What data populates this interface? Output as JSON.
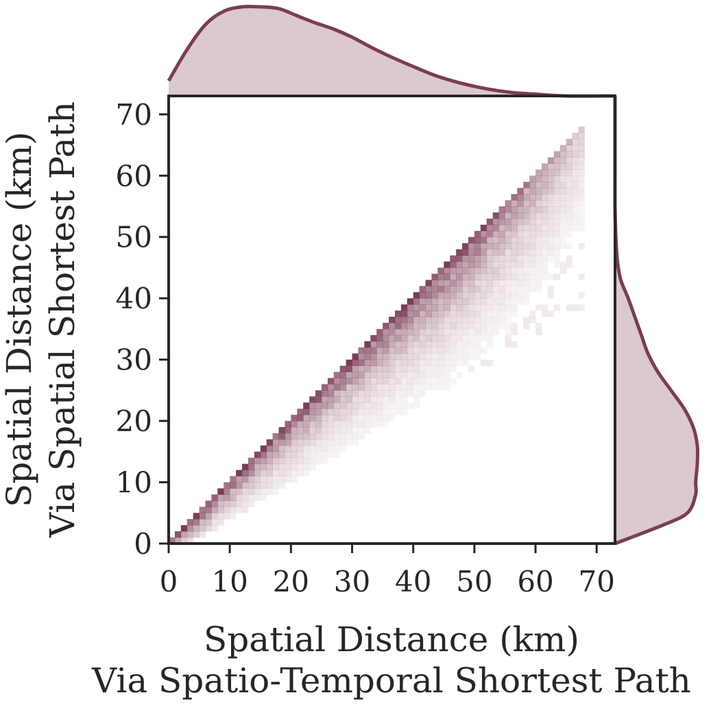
{
  "colors": {
    "line": "#7a3d56",
    "fill": "#dcc8cf",
    "heat_max": "#7a3d56",
    "axis": "#262626"
  },
  "chart_data": {
    "type": "heatmap",
    "subtype": "joint 2D histogram with marginal KDE curves",
    "title": "",
    "xlabel_lines": [
      "Spatial Distance (km)",
      "Via Spatio-Temporal Shortest Path"
    ],
    "ylabel_lines": [
      "Spatial Distance (km)",
      "Via Spatial Shortest Path"
    ],
    "xlim": [
      0,
      73
    ],
    "ylim": [
      0,
      73
    ],
    "xticks": [
      0,
      10,
      20,
      30,
      40,
      50,
      60,
      70
    ],
    "yticks": [
      0,
      10,
      20,
      30,
      40,
      50,
      60,
      70
    ],
    "grid": false,
    "legend": "none",
    "bin_width_km": 1,
    "heatmap": {
      "description": "Counts concentrated along the diagonal y = x (strongest just below it); density fades as y falls further below x and as distance grows beyond ~50 km.",
      "diagonal_end_km": 68,
      "min_ratio_y_over_x": 0.6
    },
    "marginal_x_kde": {
      "x": [
        0,
        3,
        6,
        9,
        12,
        15,
        18,
        21,
        24,
        27,
        30,
        33,
        36,
        40,
        44,
        48,
        52,
        56,
        60,
        65,
        73
      ],
      "density": [
        0.17,
        0.52,
        0.8,
        0.95,
        1.0,
        1.0,
        0.98,
        0.9,
        0.82,
        0.75,
        0.66,
        0.55,
        0.45,
        0.33,
        0.22,
        0.14,
        0.08,
        0.04,
        0.02,
        0.0,
        0.0
      ]
    },
    "marginal_y_kde": {
      "y": [
        0,
        3,
        5,
        8,
        10,
        13,
        16,
        19,
        22,
        25,
        28,
        31,
        34,
        37,
        40,
        43,
        46,
        50,
        55,
        60,
        65,
        73
      ],
      "density": [
        0.0,
        0.58,
        0.88,
        0.98,
        0.98,
        1.0,
        1.0,
        0.95,
        0.84,
        0.68,
        0.52,
        0.4,
        0.32,
        0.24,
        0.16,
        0.07,
        0.03,
        0.01,
        0.0,
        0.0,
        0.0,
        0.0
      ]
    }
  }
}
